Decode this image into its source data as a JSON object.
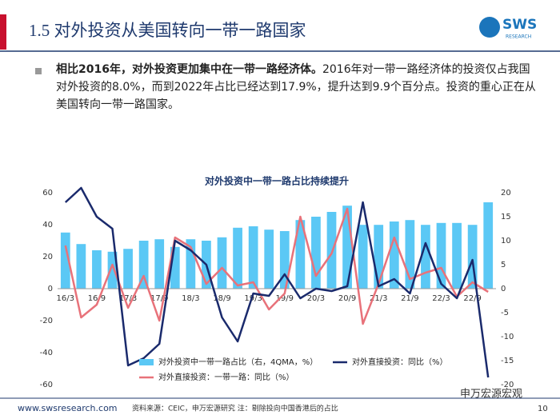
{
  "header": {
    "title": "1.5 对外投资从美国转向一带一路国家",
    "logo": "SWS",
    "logo_sub": "RESEARCH"
  },
  "bullet": {
    "bold": "相比2016年，对外投资更加集中在一带一路经济体。",
    "text": "2016年对一带一路经济体的投资仅占我国对外投资的8.0%，而到2022年占比已经达到17.9%，提升达到9.9个百分点。投资的重心正在从美国转向一带一路国家。"
  },
  "chart_data": {
    "type": "bar-line",
    "title": "对外投资中一带一路占比持续提升",
    "categories": [
      "16/3",
      null,
      "16/9",
      null,
      "17/3",
      null,
      "17/9",
      null,
      "18/3",
      null,
      "18/9",
      null,
      "19/3",
      null,
      "19/9",
      null,
      "20/3",
      null,
      "20/9",
      null,
      "21/3",
      null,
      "21/9",
      null,
      "22/3",
      null,
      "22/9",
      null
    ],
    "series": [
      {
        "name": "对外投资中一带一路占比（右，4QMA，%）",
        "type": "bar",
        "axis": "y2",
        "color": "#5bc8f5",
        "values": [
          11.7,
          9.3,
          8,
          7.7,
          8.3,
          10,
          10.3,
          8.7,
          10.3,
          10,
          10.7,
          12.7,
          13,
          12.3,
          12,
          14.3,
          15,
          16,
          17.3,
          13.3,
          13.3,
          14,
          14.3,
          13.3,
          13.7,
          13.7,
          13.3,
          18
        ]
      },
      {
        "name": "对外直接投资：同比（%）",
        "type": "line",
        "axis": "y2",
        "color": "#1a2a6c",
        "values": [
          18,
          21,
          15,
          12.5,
          -16,
          -14.5,
          -11.5,
          10,
          8,
          5,
          -6,
          -11,
          -1,
          -1.5,
          3,
          -2,
          0,
          -0.5,
          0.5,
          18,
          0.5,
          2,
          -1,
          9.5,
          1,
          -2,
          6,
          -18.5
        ]
      },
      {
        "name": "对外直接投资：一带一路：同比（%）",
        "type": "line",
        "axis": "y",
        "color": "#e8727a",
        "values": [
          27,
          -18,
          -10,
          15,
          -12,
          8,
          -20,
          32,
          26,
          3,
          13,
          2,
          4,
          -13,
          -3,
          45,
          8,
          22,
          50,
          -22,
          3,
          32,
          6,
          10,
          13,
          -5,
          4,
          -2
        ]
      }
    ],
    "ylim": [
      -60,
      60
    ],
    "yticks": [
      -60,
      -40,
      -20,
      0,
      20,
      40,
      60
    ],
    "y2lim": [
      -20,
      20
    ],
    "y2ticks": [
      -20,
      -15,
      -10,
      -5,
      0,
      5,
      10,
      15,
      20
    ]
  },
  "footer": {
    "url": "www.swsresearch.com",
    "source": "资料来源：CEIC，申万宏源研究 注：剔除投向中国香港后的占比",
    "wechat": "申万宏源宏观",
    "page": "10"
  }
}
